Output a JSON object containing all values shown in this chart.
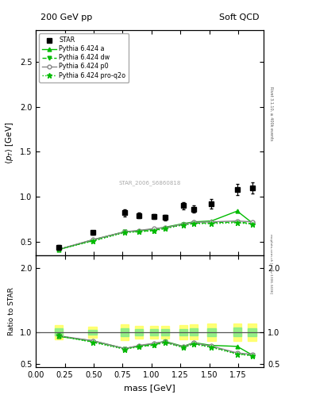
{
  "title_left": "200 GeV pp",
  "title_right": "Soft QCD",
  "ylabel_main": "$\\langle p_T \\rangle$ [GeV]",
  "ylabel_ratio": "Ratio to STAR",
  "xlabel": "mass [GeV]",
  "right_label_top": "Rivet 3.1.10, ≥ 400k events",
  "right_label_bottom": "mcplots.cern.ch [arXiv:1306.3436]",
  "watermark": "STAR_2006_S6860818",
  "star_x": [
    0.197,
    0.49,
    0.769,
    0.89,
    1.02,
    1.116,
    1.274,
    1.366,
    1.519,
    1.741,
    1.87
  ],
  "star_y": [
    0.44,
    0.6,
    0.82,
    0.79,
    0.78,
    0.77,
    0.9,
    0.86,
    0.92,
    1.08,
    1.1
  ],
  "star_yerr": [
    0.02,
    0.02,
    0.04,
    0.03,
    0.03,
    0.03,
    0.04,
    0.04,
    0.05,
    0.06,
    0.06
  ],
  "py_a_x": [
    0.197,
    0.49,
    0.769,
    0.89,
    1.02,
    1.116,
    1.274,
    1.366,
    1.519,
    1.741,
    1.87
  ],
  "py_a_y": [
    0.41,
    0.52,
    0.61,
    0.62,
    0.64,
    0.66,
    0.7,
    0.72,
    0.73,
    0.84,
    0.71
  ],
  "py_dw_x": [
    0.197,
    0.49,
    0.769,
    0.89,
    1.02,
    1.116,
    1.274,
    1.366,
    1.519,
    1.741,
    1.87
  ],
  "py_dw_y": [
    0.415,
    0.51,
    0.61,
    0.615,
    0.625,
    0.65,
    0.69,
    0.705,
    0.71,
    0.72,
    0.7
  ],
  "py_p0_x": [
    0.197,
    0.49,
    0.769,
    0.89,
    1.02,
    1.116,
    1.274,
    1.366,
    1.519,
    1.741,
    1.87
  ],
  "py_p0_y": [
    0.415,
    0.52,
    0.61,
    0.625,
    0.645,
    0.655,
    0.695,
    0.715,
    0.72,
    0.73,
    0.72
  ],
  "py_proq2o_x": [
    0.197,
    0.49,
    0.769,
    0.89,
    1.02,
    1.116,
    1.274,
    1.366,
    1.519,
    1.741,
    1.87
  ],
  "py_proq2o_y": [
    0.415,
    0.505,
    0.6,
    0.61,
    0.62,
    0.645,
    0.685,
    0.7,
    0.7,
    0.71,
    0.695
  ],
  "color_a": "#00bb00",
  "color_dw": "#00bb00",
  "color_p0": "#888888",
  "color_proq2o": "#00bb00",
  "band_x": [
    0.197,
    0.49,
    0.769,
    0.89,
    1.02,
    1.116,
    1.274,
    1.366,
    1.519,
    1.741,
    1.87
  ],
  "band_width": [
    0.07,
    0.07,
    0.07,
    0.07,
    0.07,
    0.07,
    0.07,
    0.07,
    0.07,
    0.07,
    0.07
  ],
  "ylim_main": [
    0.35,
    2.85
  ],
  "ylim_ratio": [
    0.45,
    2.2
  ],
  "xlim": [
    0.0,
    1.97
  ],
  "main_yticks": [
    0.5,
    1.0,
    1.5,
    2.0,
    2.5
  ],
  "ratio_yticks": [
    0.5,
    1.0,
    2.0
  ],
  "xticks": [
    0.0,
    0.25,
    0.5,
    0.75,
    1.0,
    1.25,
    1.5,
    1.75
  ]
}
